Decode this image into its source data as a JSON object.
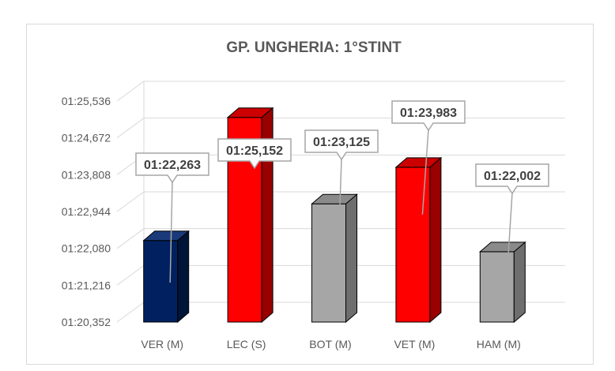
{
  "chart_data": {
    "type": "bar",
    "title": "GP. UNGHERIA: 1°STINT",
    "xlabel": "",
    "ylabel": "",
    "categories": [
      "VER (M)",
      "LEC (S)",
      "BOT (M)",
      "VET (M)",
      "HAM (M)"
    ],
    "values": [
      82.263,
      85.152,
      83.125,
      83.983,
      82.002
    ],
    "data_labels": [
      "01:22,263",
      "01:25,152",
      "01:23,125",
      "01:23,983",
      "01:22,002"
    ],
    "y_ticks": [
      80.352,
      81.216,
      82.08,
      82.944,
      83.808,
      84.672,
      85.536
    ],
    "y_tick_labels": [
      "01:20,352",
      "01:21,216",
      "01:22,080",
      "01:22,944",
      "01:23,808",
      "01:24,672",
      "01:25,536"
    ],
    "ylim": [
      80.352,
      85.536
    ],
    "grid": true,
    "style": "3d-column",
    "legend": "none",
    "colors": {
      "VER (M)": {
        "front": "#002060",
        "side": "#001438",
        "top": "#1a3a7a"
      },
      "LEC (S)": {
        "front": "#ff0000",
        "side": "#990000",
        "top": "#cc0000"
      },
      "BOT (M)": {
        "front": "#a6a6a6",
        "side": "#6e6e6e",
        "top": "#8a8a8a"
      },
      "VET (M)": {
        "front": "#ff0000",
        "side": "#990000",
        "top": "#cc0000"
      },
      "HAM (M)": {
        "front": "#a6a6a6",
        "side": "#6e6e6e",
        "top": "#8a8a8a"
      },
      "gridline": "#d9d9d9",
      "callout_border": "#a6a6a6",
      "text": "#595959"
    }
  }
}
